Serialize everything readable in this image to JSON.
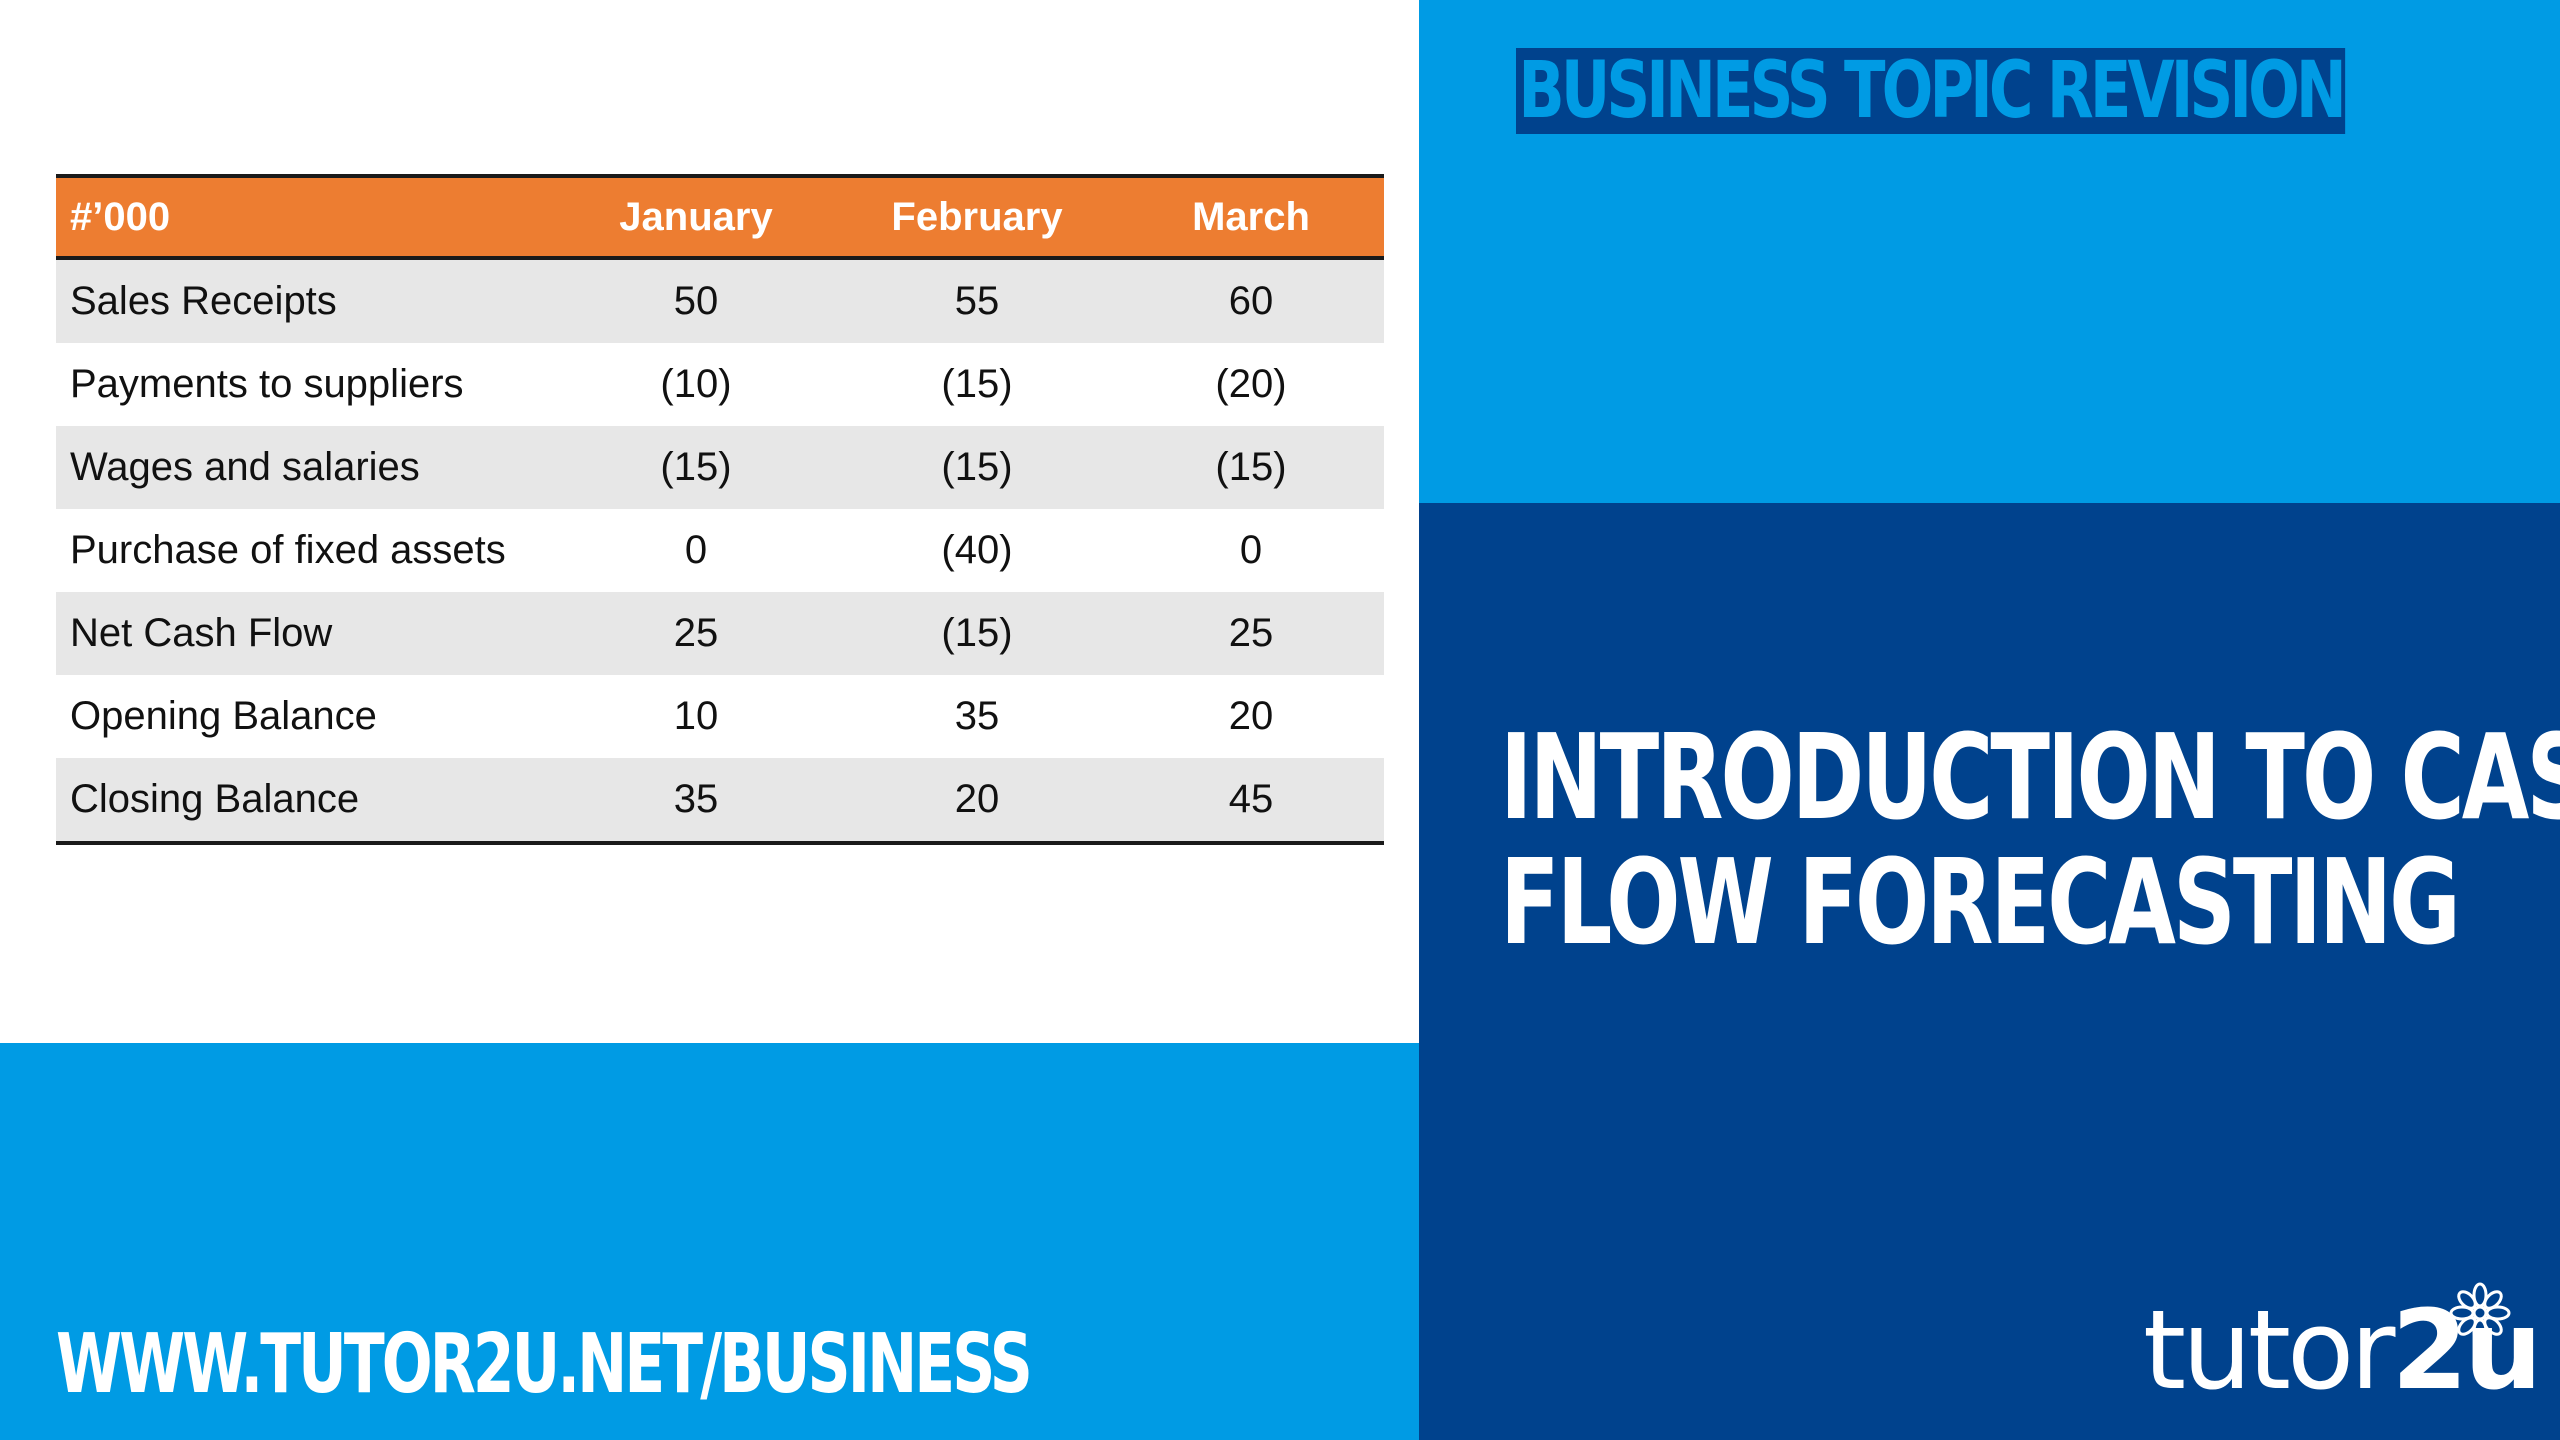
{
  "header_label": "BUSINESS TOPIC REVISION",
  "title": {
    "line1": "INTRODUCTION TO CASH",
    "line2": "FLOW FORECASTING"
  },
  "website": "WWW.TUTOR2U.NET/BUSINESS",
  "brand": {
    "part1": "tutor",
    "part2": "2u",
    "logo_icon": "flower-icon"
  },
  "colors": {
    "light_blue": "#009be4",
    "dark_blue": "#00428d",
    "table_header": "#ed7d31",
    "row_shade": "#e7e7e7"
  },
  "table": {
    "headers": [
      "#’000",
      "January",
      "February",
      "March"
    ],
    "rows": [
      [
        "Sales Receipts",
        "50",
        "55",
        "60"
      ],
      [
        "Payments to suppliers",
        "(10)",
        "(15)",
        "(20)"
      ],
      [
        "Wages and salaries",
        "(15)",
        "(15)",
        "(15)"
      ],
      [
        "Purchase of fixed assets",
        "0",
        "(40)",
        "0"
      ],
      [
        "Net Cash Flow",
        "25",
        "(15)",
        "25"
      ],
      [
        "Opening Balance",
        "10",
        "35",
        "20"
      ],
      [
        "Closing Balance",
        "35",
        "20",
        "45"
      ]
    ]
  }
}
